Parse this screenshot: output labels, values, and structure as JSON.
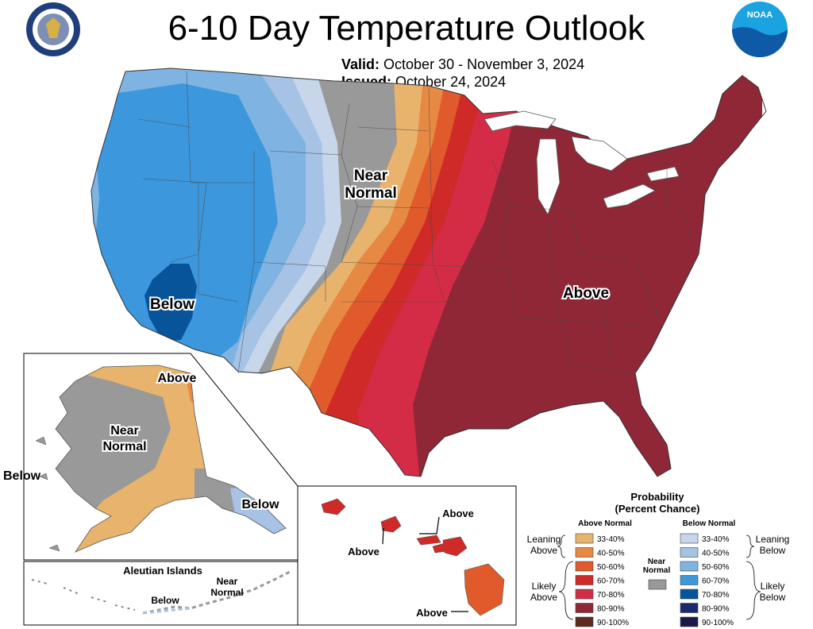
{
  "title": "6-10 Day Temperature Outlook",
  "valid": {
    "label": "Valid:",
    "value": "October 30 - November 3, 2024"
  },
  "issued": {
    "label": "Issued:",
    "value": "October 24, 2024"
  },
  "logos": {
    "left": "commerce-seal",
    "right": "noaa-logo",
    "right_text": "NOAA"
  },
  "map_labels": {
    "near_normal_1": "Near",
    "near_normal_2": "Normal",
    "below": "Below",
    "above": "Above"
  },
  "alaska": {
    "above": "Above",
    "near_1": "Near",
    "near_2": "Normal",
    "below_west": "Below",
    "below_se": "Below"
  },
  "aleutians": {
    "title": "Aleutian Islands",
    "below": "Below",
    "near_1": "Near",
    "near_2": "Normal"
  },
  "hawaii": {
    "above_1": "Above",
    "above_2": "Above",
    "above_3": "Above"
  },
  "legend": {
    "title_1": "Probability",
    "title_2": "(Percent Chance)",
    "above_header": "Above Normal",
    "below_header": "Below Normal",
    "near_1": "Near",
    "near_2": "Normal",
    "leaning_above_1": "Leaning",
    "leaning_above_2": "Above",
    "likely_above_1": "Likely",
    "likely_above_2": "Above",
    "leaning_below_1": "Leaning",
    "leaning_below_2": "Below",
    "likely_below_1": "Likely",
    "likely_below_2": "Below",
    "above_items": [
      {
        "label": "33-40%",
        "color": "#e8b36c"
      },
      {
        "label": "40-50%",
        "color": "#e68a43"
      },
      {
        "label": "50-60%",
        "color": "#e05a2b"
      },
      {
        "label": "60-70%",
        "color": "#cf2a27"
      },
      {
        "label": "70-80%",
        "color": "#d42c47"
      },
      {
        "label": "80-90%",
        "color": "#8f2736"
      },
      {
        "label": "90-100%",
        "color": "#5e2a1e"
      }
    ],
    "below_items": [
      {
        "label": "33-40%",
        "color": "#c7d6ea"
      },
      {
        "label": "40-50%",
        "color": "#a6c2e4"
      },
      {
        "label": "50-60%",
        "color": "#7fb3e1"
      },
      {
        "label": "60-70%",
        "color": "#3c97dc"
      },
      {
        "label": "70-80%",
        "color": "#07549a"
      },
      {
        "label": "80-90%",
        "color": "#1a2a6c"
      },
      {
        "label": "90-100%",
        "color": "#1a1a4a"
      }
    ],
    "near_color": "#999999"
  }
}
